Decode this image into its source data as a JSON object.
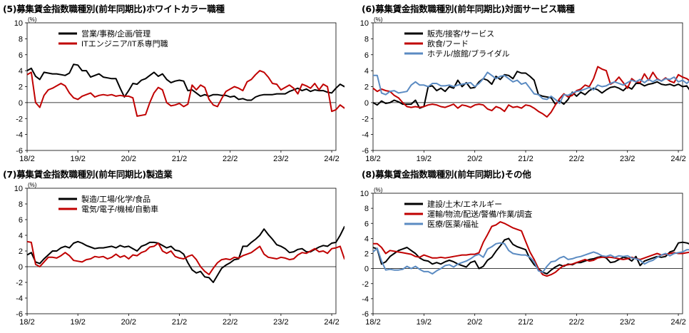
{
  "chart_data": [
    {
      "type": "line",
      "title": "(5)募集賃金指数職種別(前年同期比)ホワイトカラー職種",
      "unit": "(%)",
      "ylim": [
        -6,
        10
      ],
      "yticks": [
        -6,
        -4,
        -2,
        0,
        2,
        4,
        6,
        8,
        10
      ],
      "xlim": [
        "2018-02",
        "2024-03"
      ],
      "xticks": [
        "18/2",
        "19/2",
        "20/2",
        "21/2",
        "22/2",
        "23/2",
        "24/2"
      ],
      "legend_position": "top-left",
      "grid": false,
      "series": [
        {
          "name": "営業/事務/企画/管理",
          "color": "#000000",
          "x_start": "2018-02",
          "values": [
            4.0,
            4.3,
            3.3,
            2.9,
            3.8,
            3.7,
            3.6,
            3.6,
            3.5,
            3.4,
            3.7,
            4.8,
            4.7,
            4.0,
            4.0,
            3.2,
            3.4,
            3.6,
            3.2,
            3.1,
            3.0,
            3.0,
            1.8,
            0.7,
            1.5,
            2.4,
            2.3,
            2.8,
            3.0,
            3.4,
            3.8,
            3.3,
            3.6,
            2.9,
            2.5,
            2.7,
            2.8,
            2.7,
            1.5,
            1.6,
            1.2,
            0.8,
            1.0,
            0.8,
            1.0,
            1.0,
            0.9,
            0.9,
            0.7,
            0.8,
            0.4,
            0.5,
            0.3,
            0.3,
            0.7,
            0.9,
            1.0,
            1.0,
            1.0,
            1.1,
            1.1,
            1.1,
            1.4,
            1.6,
            1.8,
            1.5,
            1.7,
            1.4,
            1.6,
            1.5,
            1.5,
            1.3,
            1.2,
            1.8,
            2.3,
            2.0,
            2.6,
            2.4,
            2.9
          ]
        },
        {
          "name": "ITエンジニア/IT系専門職",
          "color": "#c00000",
          "x_start": "2018-02",
          "values": [
            3.5,
            3.8,
            0.0,
            -0.6,
            0.9,
            1.6,
            1.8,
            2.1,
            2.4,
            2.1,
            1.2,
            0.6,
            0.4,
            0.8,
            1.0,
            1.2,
            0.7,
            0.9,
            1.0,
            0.9,
            1.0,
            0.8,
            0.9,
            0.8,
            0.8,
            0.6,
            -1.7,
            -1.6,
            -1.5,
            0.0,
            1.2,
            1.9,
            1.6,
            0.0,
            -0.4,
            -0.3,
            -0.1,
            -0.5,
            -0.2,
            2.2,
            1.6,
            2.2,
            1.9,
            0.4,
            -0.3,
            -0.5,
            0.5,
            1.4,
            1.7,
            2.0,
            1.8,
            1.5,
            2.6,
            2.9,
            3.5,
            4.0,
            3.8,
            3.2,
            2.4,
            2.3,
            1.6,
            1.9,
            2.2,
            1.8,
            1.1,
            2.3,
            2.1,
            1.8,
            2.4,
            1.6,
            2.3,
            2.0,
            -1.1,
            -0.9,
            -0.3,
            -0.7,
            0.3
          ]
        }
      ]
    },
    {
      "type": "line",
      "title": "(6)募集賃金指数職種別(前年同期比)対面サービス職種",
      "unit": "(%)",
      "ylim": [
        -6,
        10
      ],
      "yticks": [
        -6,
        -4,
        -2,
        0,
        2,
        4,
        6,
        8,
        10
      ],
      "xlim": [
        "2018-02",
        "2024-03"
      ],
      "xticks": [
        "18/2",
        "19/2",
        "20/2",
        "21/2",
        "22/2",
        "23/2",
        "24/2"
      ],
      "legend_position": "top-left",
      "grid": false,
      "series": [
        {
          "name": "販売/接客/サービス",
          "color": "#000000",
          "x_start": "2018-02",
          "values": [
            0.0,
            -0.3,
            0.2,
            -0.1,
            0.0,
            0.3,
            0.1,
            -0.2,
            -0.2,
            -0.2,
            0.3,
            -0.7,
            -0.5,
            2.0,
            2.1,
            1.5,
            1.8,
            1.4,
            2.0,
            1.8,
            2.8,
            2.0,
            2.5,
            1.8,
            1.9,
            2.6,
            3.0,
            2.8,
            2.3,
            3.3,
            2.9,
            3.5,
            3.4,
            3.0,
            3.9,
            3.7,
            3.7,
            3.3,
            2.8,
            1.0,
            0.8,
            0.7,
            0.6,
            -0.2,
            0.2,
            -0.2,
            0.4,
            1.3,
            0.8,
            1.3,
            1.0,
            1.5,
            1.8,
            1.6,
            1.2,
            1.6,
            1.9,
            2.0,
            1.8,
            1.5,
            2.0,
            1.7,
            2.4,
            2.4,
            2.1,
            2.3,
            2.4,
            2.6,
            2.3,
            2.2,
            2.3,
            2.1,
            2.3,
            2.0,
            2.1,
            1.3,
            1.5,
            1.8
          ]
        },
        {
          "name": "飲食/フード",
          "color": "#c00000",
          "x_start": "2018-02",
          "values": [
            1.8,
            1.4,
            1.7,
            1.5,
            1.4,
            0.9,
            0.6,
            0.0,
            -0.5,
            -0.6,
            -0.5,
            -0.6,
            -0.5,
            -0.3,
            -0.2,
            -0.3,
            -0.5,
            -0.6,
            -0.4,
            -0.2,
            -0.7,
            -0.3,
            -0.4,
            -0.6,
            -0.3,
            -0.2,
            -0.3,
            -0.8,
            -1.0,
            -0.5,
            -0.7,
            -1.1,
            -0.3,
            -0.6,
            -0.5,
            -0.7,
            -0.3,
            -0.4,
            -0.7,
            -1.1,
            -1.4,
            -1.8,
            -1.2,
            -0.3,
            0.5,
            1.1,
            0.7,
            0.9,
            1.5,
            1.7,
            2.2,
            2.0,
            3.0,
            4.5,
            4.2,
            4.0,
            2.3,
            2.6,
            3.2,
            2.5,
            1.8,
            3.0,
            2.6,
            2.5,
            3.6,
            2.8,
            3.8,
            3.0,
            2.7,
            3.1,
            2.7,
            2.5,
            3.5,
            3.2,
            3.0,
            2.6,
            2.1,
            1.9
          ]
        },
        {
          "name": "ホテル/旅館/ブライダル",
          "color": "#5b8bc2",
          "x_start": "2018-02",
          "values": [
            3.4,
            3.4,
            1.2,
            1.0,
            1.4,
            1.5,
            1.2,
            1.3,
            1.4,
            2.2,
            2.6,
            2.2,
            2.2,
            2.0,
            2.4,
            2.4,
            2.1,
            2.1,
            2.2,
            2.0,
            2.2,
            2.3,
            2.4,
            2.5,
            2.0,
            2.4,
            3.0,
            3.8,
            3.4,
            3.0,
            3.3,
            3.4,
            3.0,
            2.6,
            2.8,
            2.3,
            2.5,
            1.8,
            1.1,
            1.0,
            0.5,
            0.4,
            0.8,
            0.4,
            -0.1,
            1.0,
            0.9,
            1.2,
            1.4,
            1.5,
            1.7,
            1.9,
            1.6,
            2.2,
            2.0,
            2.1,
            2.4,
            2.6,
            2.4,
            2.2,
            2.5,
            2.8,
            2.6,
            2.9,
            2.5,
            2.9,
            2.6,
            2.9,
            2.7,
            3.0,
            2.9,
            3.2,
            2.6,
            2.8,
            2.4,
            2.9,
            3.4,
            4.0
          ]
        }
      ]
    },
    {
      "type": "line",
      "title": "(7)募集賃金指数職種別(前年同期比)製造業",
      "unit": "(%)",
      "ylim": [
        -6,
        10
      ],
      "yticks": [
        -6,
        -4,
        -2,
        0,
        2,
        4,
        6,
        8,
        10
      ],
      "xlim": [
        "2018-02",
        "2024-03"
      ],
      "xticks": [
        "18/2",
        "19/2",
        "20/2",
        "21/2",
        "22/2",
        "23/2",
        "24/2"
      ],
      "legend_position": "top-left",
      "grid": false,
      "series": [
        {
          "name": "製造/工場/化学/食品",
          "color": "#000000",
          "x_start": "2018-02",
          "values": [
            1.5,
            1.8,
            0.6,
            0.4,
            1.0,
            1.5,
            2.0,
            2.0,
            2.4,
            2.6,
            2.4,
            3.0,
            3.2,
            3.0,
            2.7,
            2.5,
            2.3,
            2.4,
            2.4,
            2.5,
            2.6,
            2.4,
            2.7,
            2.5,
            2.6,
            2.3,
            2.0,
            2.6,
            2.8,
            3.1,
            3.1,
            3.0,
            2.7,
            2.4,
            2.6,
            2.1,
            2.0,
            1.6,
            0.5,
            -0.4,
            -0.8,
            -0.6,
            -1.3,
            -1.4,
            -2.0,
            -1.1,
            -0.2,
            0.2,
            0.5,
            0.9,
            1.0,
            2.6,
            2.6,
            3.1,
            3.5,
            4.0,
            4.8,
            4.1,
            3.5,
            2.8,
            2.6,
            2.3,
            1.8,
            1.9,
            2.2,
            2.3,
            1.9,
            1.9,
            2.2,
            2.5,
            2.7,
            2.6,
            3.0,
            3.1,
            4.0,
            5.1,
            5.3,
            5.5
          ]
        },
        {
          "name": "電気/電子/機械/自動車",
          "color": "#c00000",
          "x_start": "2018-02",
          "values": [
            3.2,
            3.1,
            0.3,
            0.0,
            0.6,
            1.2,
            1.2,
            1.1,
            1.4,
            1.8,
            1.4,
            0.8,
            0.7,
            0.6,
            0.9,
            1.0,
            1.3,
            1.2,
            1.3,
            1.0,
            1.2,
            1.6,
            1.2,
            1.4,
            1.0,
            1.5,
            1.4,
            1.8,
            2.0,
            2.5,
            2.6,
            3.0,
            2.0,
            1.7,
            2.0,
            1.3,
            1.1,
            1.0,
            1.3,
            1.5,
            0.9,
            0.0,
            -0.6,
            -1.0,
            -0.2,
            0.5,
            0.9,
            1.0,
            0.9,
            1.2,
            1.1,
            1.4,
            1.6,
            1.8,
            2.2,
            2.6,
            1.6,
            1.2,
            1.1,
            1.0,
            1.2,
            1.1,
            0.9,
            1.0,
            1.5,
            1.8,
            1.7,
            2.0,
            2.3,
            1.9,
            2.0,
            1.7,
            2.3,
            2.4,
            2.6,
            1.0,
            1.6,
            1.6
          ]
        }
      ]
    },
    {
      "type": "line",
      "title": "(8)募集賃金指数職種別(前年同期比)その他",
      "unit": "(%)",
      "ylim": [
        -6,
        10
      ],
      "yticks": [
        -6,
        -4,
        -2,
        0,
        2,
        4,
        6,
        8,
        10
      ],
      "xlim": [
        "2018-02",
        "2024-03"
      ],
      "xticks": [
        "18/2",
        "19/2",
        "20/2",
        "21/2",
        "22/2",
        "23/2",
        "24/2"
      ],
      "legend_position": "top-left",
      "grid": false,
      "series": [
        {
          "name": "建設/土木/エネルギー",
          "color": "#000000",
          "x_start": "2018-02",
          "values": [
            2.8,
            2.6,
            0.6,
            0.9,
            1.6,
            2.0,
            2.4,
            2.6,
            2.8,
            2.4,
            2.0,
            1.4,
            1.1,
            1.0,
            0.6,
            0.8,
            0.6,
            0.9,
            1.1,
            0.9,
            0.6,
            0.4,
            0.2,
            0.8,
            1.0,
            0.0,
            0.3,
            1.1,
            1.5,
            2.3,
            3.0,
            3.8,
            4.0,
            3.2,
            2.9,
            2.7,
            2.5,
            1.3,
            0.5,
            0.0,
            -0.5,
            -0.7,
            -0.2,
            0.2,
            0.5,
            0.3,
            0.6,
            0.5,
            0.8,
            0.8,
            1.0,
            1.2,
            1.3,
            1.5,
            1.6,
            1.4,
            0.8,
            0.9,
            1.2,
            1.5,
            1.4,
            1.0,
            1.6,
            0.4,
            1.0,
            1.2,
            1.4,
            1.6,
            1.5,
            1.6,
            2.2,
            2.4,
            3.4,
            3.5,
            3.4,
            3.2,
            3.3,
            3.2
          ]
        },
        {
          "name": "運輸/物流/配送/警備/作業/調査",
          "color": "#c00000",
          "x_start": "2018-02",
          "values": [
            3.3,
            3.3,
            2.8,
            2.0,
            2.4,
            2.3,
            2.2,
            2.1,
            2.0,
            1.9,
            1.6,
            1.5,
            1.8,
            1.6,
            1.4,
            1.4,
            1.5,
            1.4,
            1.5,
            1.6,
            1.7,
            1.8,
            1.8,
            1.9,
            1.9,
            2.1,
            3.5,
            4.5,
            5.6,
            5.8,
            6.2,
            6.0,
            5.7,
            5.4,
            5.2,
            5.0,
            3.6,
            2.2,
            1.2,
            0.0,
            -0.8,
            -1.0,
            -0.8,
            -0.5,
            0.0,
            0.4,
            0.5,
            0.6,
            0.8,
            1.0,
            1.2,
            1.0,
            1.1,
            1.4,
            1.5,
            1.5,
            1.5,
            1.4,
            1.3,
            1.2,
            1.3,
            1.5,
            1.3,
            1.2,
            1.4,
            1.6,
            1.8,
            2.0,
            1.8,
            1.9,
            2.0,
            2.1,
            2.0,
            2.0,
            2.1,
            2.2,
            2.3,
            2.0
          ]
        },
        {
          "name": "医療/医薬/福祉",
          "color": "#5b8bc2",
          "x_start": "2018-02",
          "values": [
            2.2,
            2.7,
            1.0,
            -0.2,
            -0.1,
            -0.2,
            -0.2,
            -0.1,
            0.3,
            0.0,
            0.3,
            -0.1,
            -0.4,
            -0.4,
            -0.7,
            -0.3,
            0.0,
            0.4,
            0.5,
            0.2,
            0.6,
            0.8,
            1.0,
            1.3,
            1.7,
            1.9,
            1.5,
            2.6,
            2.9,
            3.3,
            3.4,
            3.3,
            2.4,
            2.0,
            1.9,
            1.8,
            1.8,
            1.5,
            0.9,
            -0.3,
            -0.5,
            0.3,
            0.9,
            1.0,
            1.4,
            1.6,
            1.2,
            1.3,
            1.5,
            1.6,
            1.8,
            2.0,
            2.2,
            2.0,
            1.7,
            1.6,
            1.8,
            1.5,
            1.7,
            1.6,
            1.7,
            1.4,
            1.3,
            1.1,
            0.6,
            0.9,
            1.1,
            1.5,
            1.8,
            2.0,
            1.7,
            2.0,
            2.1,
            2.2,
            2.5,
            2.5,
            2.6,
            2.5
          ]
        }
      ]
    }
  ]
}
